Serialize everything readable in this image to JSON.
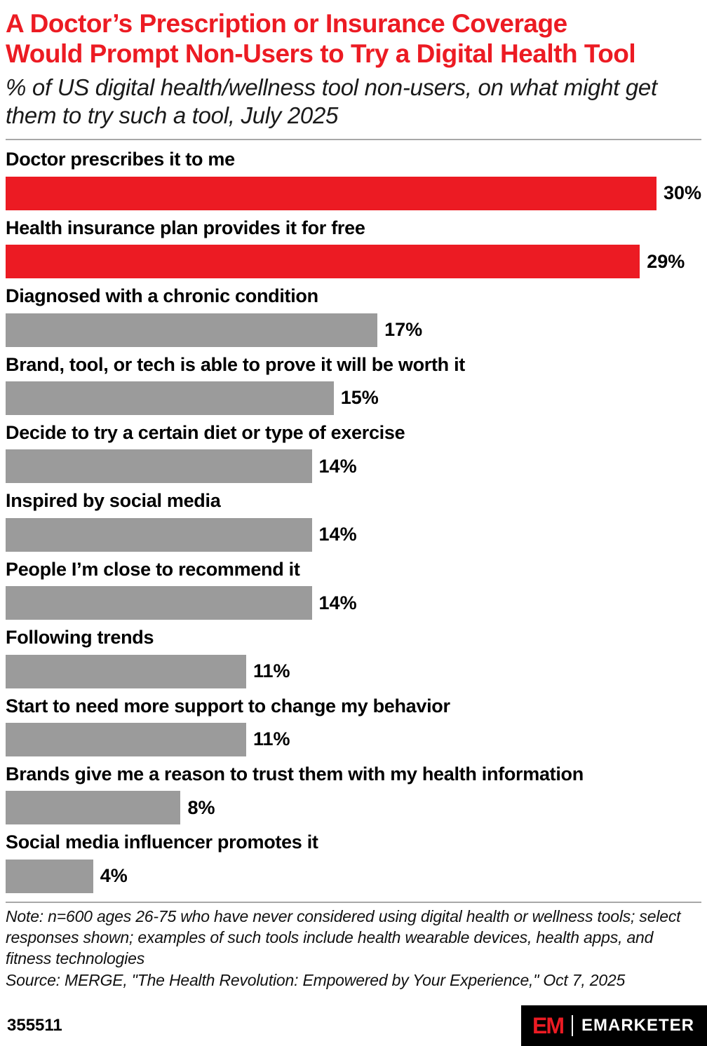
{
  "header": {
    "title_lines": [
      "A Doctor’s Prescription or Insurance Coverage",
      "Would Prompt Non-Users to Try a Digital Health Tool"
    ],
    "subtitle": "% of US digital health/wellness tool non-users, on what might get them to try such a tool, July 2025"
  },
  "chart_data": {
    "type": "bar",
    "orientation": "horizontal",
    "title": "A Doctor’s Prescription or Insurance Coverage Would Prompt Non-Users to Try a Digital Health Tool",
    "subtitle": "% of US digital health/wellness tool non-users, on what might get them to try such a tool, July 2025",
    "xlabel": "",
    "ylabel": "",
    "xlim": [
      0,
      30
    ],
    "grid": false,
    "legend": false,
    "categories": [
      "Doctor prescribes it to me",
      "Health insurance plan provides it for free",
      "Diagnosed with a chronic condition",
      "Brand, tool, or tech is able to prove it will be worth it",
      "Decide to try a certain diet or type of exercise",
      "Inspired by social media",
      "People I’m close to recommend it",
      "Following trends",
      "Start to need more support to change my behavior",
      "Brands give me a reason to trust them with my health information",
      "Social media influencer promotes it"
    ],
    "values": [
      30,
      29,
      17,
      15,
      14,
      14,
      14,
      11,
      11,
      8,
      4
    ],
    "value_labels": [
      "30%",
      "29%",
      "17%",
      "15%",
      "14%",
      "14%",
      "14%",
      "11%",
      "11%",
      "8%",
      "4%"
    ],
    "highlighted": [
      true,
      true,
      false,
      false,
      false,
      false,
      false,
      false,
      false,
      false,
      false
    ],
    "colors": {
      "accent": "#EC1B23",
      "default": "#9B9B9B"
    }
  },
  "footnote": {
    "note": "Note: n=600 ages 26-75 who have never considered using digital health or wellness tools; select responses shown; examples of such tools include health wearable devices, health apps, and fitness technologies",
    "source": "Source: MERGE, \"The Health Revolution: Empowered by Your Experience,\" Oct 7, 2025"
  },
  "footer": {
    "chart_id": "355511",
    "logo_em": "EM",
    "logo_text": "EMARKETER"
  }
}
